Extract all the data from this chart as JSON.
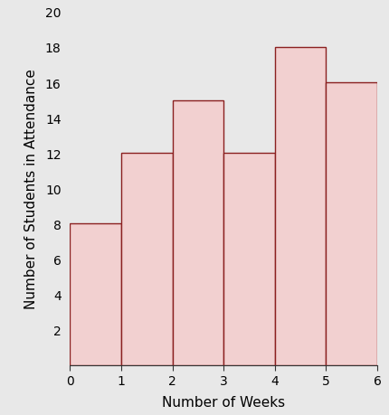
{
  "bar_values": [
    8,
    12,
    15,
    12,
    18,
    16
  ],
  "bar_positions": [
    0.5,
    1.5,
    2.5,
    3.5,
    4.5,
    5.5
  ],
  "bar_width": 1.0,
  "xlim": [
    0,
    6
  ],
  "ylim": [
    0,
    20
  ],
  "xticks": [
    0,
    1,
    2,
    3,
    4,
    5,
    6
  ],
  "yticks": [
    0,
    2,
    4,
    6,
    8,
    10,
    12,
    14,
    16,
    18,
    20
  ],
  "ytick_labels": [
    "",
    "2",
    "4",
    "6",
    "8",
    "10",
    "12",
    "14",
    "16",
    "18",
    "20"
  ],
  "xlabel": "Number of Weeks",
  "ylabel": "Number of Students in Attendance",
  "bar_fill_color": "#f2d0d0",
  "bar_edge_color": "#8b2020",
  "bar_linewidth": 1.0,
  "background_color": "#e8e8e8",
  "axes_background_color": "#e8e8e8",
  "tick_color": "#555555",
  "spine_color": "#333333"
}
